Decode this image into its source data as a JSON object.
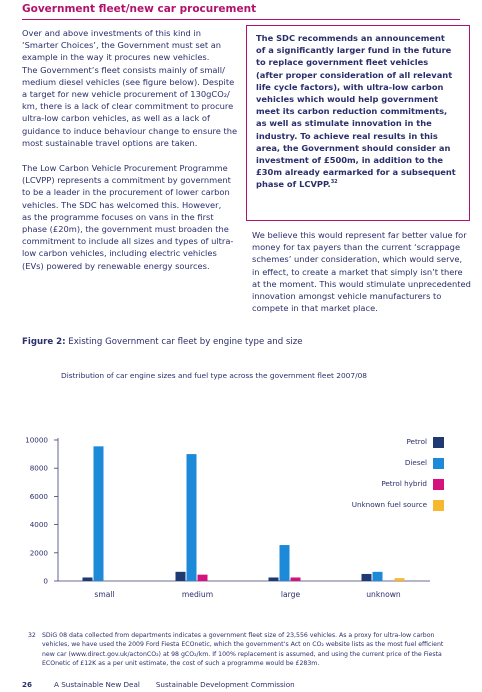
{
  "section_title": "Government fleet/new car procurement",
  "left_column": {
    "para1": "Over and above investments of this kind in\n‘Smarter Choices’, the Government must set an\nexample in the way it procures new vehicles.\nThe Government’s fleet consists mainly of small/\nmedium diesel vehicles (see figure below). Despite\na target for new vehicle procurement of 130gCO₂/\nkm, there is a lack of clear commitment to procure\nultra-low carbon vehicles, as well as a lack of\nguidance to induce behaviour change to ensure the\nmost sustainable travel options are taken.",
    "para2": "The Low Carbon Vehicle Procurement Programme\n(LCVPP) represents a commitment by government\nto be a leader in the procurement of lower carbon\nvehicles. The SDC has welcomed this. However,\nas the programme focuses on vans in the first\nphase (£20m), the government must broaden the\ncommitment to include all sizes and types of ultra-\nlow carbon vehicles, including electric vehicles\n(EVs) powered by renewable energy sources."
  },
  "callout": {
    "text": "The SDC recommends an announcement\nof a significantly larger fund in the future\nto replace government fleet vehicles\n(after proper consideration of all relevant\nlife cycle factors), with ultra-low carbon\nvehicles which would help government\nmeet its carbon reduction commitments,\nas well as stimulate innovation in the\nindustry. To achieve real results in this\narea, the Government should consider an\ninvestment of £500m, in addition to the\n£30m already earmarked for a subsequent\nphase of LCVPP.",
    "footnote_ref": "32"
  },
  "right_column": {
    "para3": "We believe this would represent far better value for\nmoney for tax payers than the current ‘scrappage\nschemes’ under consideration, which would serve,\nin effect, to create a market that simply isn’t there\nat the moment. This would stimulate unprecedented\ninnovation amongst vehicle manufacturers to\ncompete in that market place."
  },
  "figure": {
    "label": "Figure 2:",
    "caption": " Existing Government car fleet by engine type and size"
  },
  "chart_data": {
    "type": "bar",
    "title": "Distribution of car engine sizes and fuel type across the government fleet 2007/08",
    "categories": [
      "small",
      "medium",
      "large",
      "unknown"
    ],
    "series": [
      {
        "name": "Petrol",
        "color": "#1f3a73",
        "values": [
          250,
          650,
          250,
          500
        ]
      },
      {
        "name": "Diesel",
        "color": "#1c8ad8",
        "values": [
          9550,
          9000,
          2550,
          650
        ]
      },
      {
        "name": "Petrol hybrid",
        "color": "#d4127e",
        "values": [
          0,
          450,
          250,
          0
        ]
      },
      {
        "name": "Unknown fuel source",
        "color": "#f5b82e",
        "values": [
          0,
          0,
          0,
          200
        ]
      }
    ],
    "yticks": [
      0,
      2000,
      4000,
      6000,
      8000,
      10000
    ],
    "ylim": [
      0,
      10000
    ],
    "legend_position": "right",
    "grid": false
  },
  "footnote": {
    "number": "32",
    "text": "SDiG 08 data collected from departments indicates a government fleet size of 23,556 vehicles. As a proxy for ultra-low carbon\nvehicles, we have used the 2009 Ford Fiesta ECOnetic, which the government’s Act on CO₂ website lists as the most fuel efficient\nnew car (www.direct.gov.uk/actonCO₂) at 98 gCO₂/km. If 100% replacement is assumed, and using the current price of the Fiesta\nECOnetic of £12K as a per unit estimate, the cost of such a programme would be £283m."
  },
  "footer": {
    "page_number": "26",
    "publication": "A Sustainable New Deal",
    "organisation": "Sustainable Development Commission"
  }
}
